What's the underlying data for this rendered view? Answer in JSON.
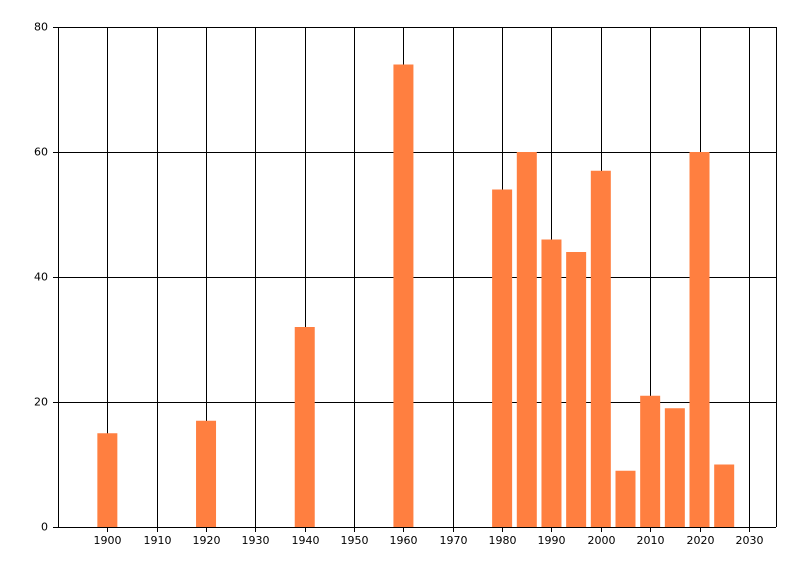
{
  "chart_data": {
    "type": "bar",
    "x": [
      1900,
      1920,
      1940,
      1960,
      1980,
      1985,
      1990,
      1995,
      2000,
      2005,
      2010,
      2015,
      2020,
      2025
    ],
    "values": [
      15,
      17,
      32,
      74,
      54,
      60,
      46,
      44,
      57,
      9,
      21,
      19,
      60,
      10
    ],
    "color": "#ff7f40",
    "xlim": [
      1890,
      2035.5
    ],
    "xticks": [
      1900,
      1910,
      1920,
      1930,
      1940,
      1950,
      1960,
      1970,
      1980,
      1990,
      2000,
      2010,
      2020,
      2030
    ],
    "ylim": [
      0,
      80
    ],
    "yticks": [
      0,
      20,
      40,
      60,
      80
    ],
    "grid": true
  }
}
